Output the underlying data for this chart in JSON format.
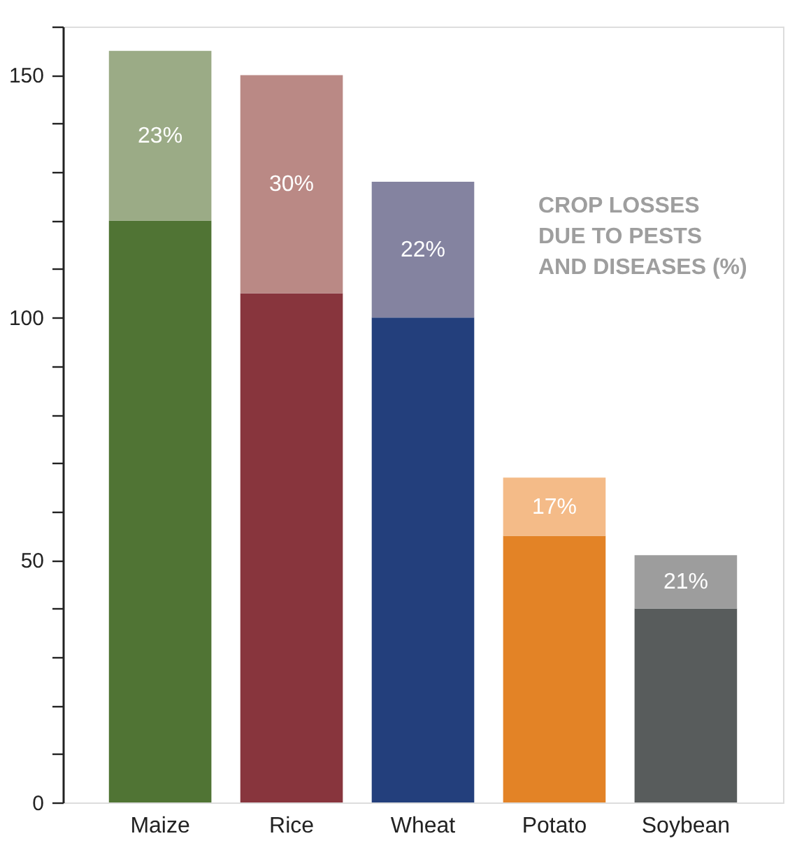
{
  "chart_data": {
    "type": "bar",
    "stacked": true,
    "categories": [
      "Maize",
      "Rice",
      "Wheat",
      "Potato",
      "Soybean"
    ],
    "series": [
      {
        "colors": [
          "#507434",
          "#88353d",
          "#233f7c",
          "#e38326",
          "#585c5c"
        ],
        "values": [
          120,
          105,
          100,
          55,
          40
        ]
      },
      {
        "colors": [
          "#9bab86",
          "#ba8985",
          "#8483a0",
          "#f4bb88",
          "#9d9d9d"
        ],
        "values": [
          35,
          45,
          28,
          12,
          11
        ]
      }
    ],
    "ylim": [
      0,
      160
    ],
    "yticks": [
      0,
      {
        "value": 10,
        "label": null
      },
      {
        "value": 20,
        "label": null
      },
      {
        "value": 30,
        "label": null
      },
      {
        "value": 40,
        "label": null
      },
      50,
      {
        "value": 60,
        "label": null
      },
      {
        "value": 70,
        "label": null
      },
      {
        "value": 80,
        "label": null
      },
      {
        "value": 90,
        "label": null
      },
      100,
      {
        "value": 110,
        "label": null
      },
      {
        "value": 120,
        "label": null
      },
      {
        "value": 130,
        "label": null
      },
      {
        "value": 140,
        "label": null
      },
      150,
      {
        "value": 160,
        "label": null
      }
    ],
    "grid": false,
    "legend": false,
    "annotations": [
      "23%",
      "30%",
      "22%",
      "17%",
      "21%",
      "CROP LOSSES\nDUE TO PESTS\nAND DISEASES (%)"
    ]
  }
}
